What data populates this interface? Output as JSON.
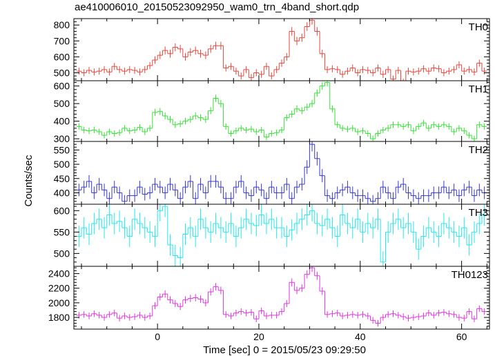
{
  "chart_data": [
    {
      "type": "line",
      "title": "ae410006010_20150523092950_wam0_trn_4band_short.qdp",
      "panel_label": "TH0",
      "color": "#e8443a",
      "ylim": [
        450,
        840
      ],
      "yticks": [
        500,
        600,
        700,
        800
      ],
      "x": [
        -15.5,
        -14.5,
        -13.5,
        -12.5,
        -11.5,
        -10.5,
        -9.5,
        -8.5,
        -7.5,
        -6.5,
        -5.5,
        -4.5,
        -3.5,
        -2.5,
        -1.5,
        -0.5,
        0.5,
        1.5,
        2.5,
        3.5,
        4.5,
        5.5,
        6.5,
        7.5,
        8.5,
        9.5,
        10.5,
        11.5,
        12.5,
        13.5,
        14.5,
        15.5,
        16.5,
        17.5,
        18.5,
        19.5,
        20.5,
        21.5,
        22.5,
        23.5,
        24.5,
        25.5,
        26.5,
        27.5,
        28.5,
        29.5,
        30.5,
        31.5,
        32.5,
        33.5,
        34.5,
        35.5,
        36.5,
        37.5,
        38.5,
        39.5,
        40.5,
        41.5,
        42.5,
        43.5,
        44.5,
        45.5,
        46.5,
        47.5,
        48.5,
        49.5,
        50.5,
        51.5,
        52.5,
        53.5,
        54.5,
        55.5,
        56.5,
        57.5,
        58.5,
        59.5,
        60.5,
        61.5,
        62.5,
        63.5,
        64.5
      ],
      "values": [
        510,
        500,
        515,
        505,
        510,
        520,
        505,
        540,
        520,
        510,
        520,
        515,
        505,
        520,
        545,
        580,
        610,
        640,
        620,
        660,
        650,
        600,
        630,
        640,
        620,
        610,
        650,
        670,
        670,
        530,
        540,
        510,
        480,
        520,
        470,
        500,
        490,
        540,
        480,
        520,
        560,
        600,
        760,
        700,
        720,
        790,
        830,
        760,
        620,
        520,
        525,
        520,
        490,
        510,
        530,
        500,
        520,
        515,
        500,
        530,
        490,
        520,
        460,
        515,
        440,
        510,
        505,
        510,
        525,
        510,
        530,
        525,
        500,
        510,
        520,
        550,
        510,
        520,
        505,
        560,
        510
      ],
      "errors": [
        22,
        22,
        22,
        22,
        22,
        22,
        22,
        22,
        22,
        22,
        22,
        22,
        22,
        22,
        22,
        24,
        24,
        25,
        25,
        25,
        25,
        24,
        25,
        25,
        25,
        24,
        25,
        25,
        25,
        22,
        22,
        22,
        22,
        22,
        22,
        22,
        22,
        22,
        22,
        22,
        23,
        24,
        27,
        26,
        26,
        27,
        28,
        27,
        25,
        22,
        22,
        22,
        22,
        22,
        22,
        22,
        22,
        22,
        22,
        22,
        22,
        22,
        22,
        22,
        22,
        22,
        22,
        22,
        22,
        22,
        22,
        22,
        22,
        22,
        22,
        22,
        22,
        22,
        22,
        22,
        22
      ]
    },
    {
      "type": "line",
      "panel_label": "TH1",
      "color": "#33e133",
      "ylim": [
        285,
        630
      ],
      "yticks": [
        300,
        400,
        500,
        600
      ],
      "x": [
        -15.5,
        -14.5,
        -13.5,
        -12.5,
        -11.5,
        -10.5,
        -9.5,
        -8.5,
        -7.5,
        -6.5,
        -5.5,
        -4.5,
        -3.5,
        -2.5,
        -1.5,
        -0.5,
        0.5,
        1.5,
        2.5,
        3.5,
        4.5,
        5.5,
        6.5,
        7.5,
        8.5,
        9.5,
        10.5,
        11.5,
        12.5,
        13.5,
        14.5,
        15.5,
        16.5,
        17.5,
        18.5,
        19.5,
        20.5,
        21.5,
        22.5,
        23.5,
        24.5,
        25.5,
        26.5,
        27.5,
        28.5,
        29.5,
        30.5,
        31.5,
        32.5,
        33.5,
        34.5,
        35.5,
        36.5,
        37.5,
        38.5,
        39.5,
        40.5,
        41.5,
        42.5,
        43.5,
        44.5,
        45.5,
        46.5,
        47.5,
        48.5,
        49.5,
        50.5,
        51.5,
        52.5,
        53.5,
        54.5,
        55.5,
        56.5,
        57.5,
        58.5,
        59.5,
        60.5,
        61.5,
        62.5,
        63.5,
        64.5
      ],
      "values": [
        370,
        350,
        345,
        350,
        340,
        320,
        340,
        330,
        335,
        360,
        345,
        350,
        365,
        340,
        360,
        450,
        455,
        430,
        410,
        380,
        385,
        400,
        410,
        430,
        420,
        410,
        460,
        530,
        500,
        370,
        330,
        345,
        360,
        350,
        355,
        340,
        350,
        310,
        330,
        335,
        350,
        420,
        440,
        470,
        460,
        480,
        500,
        560,
        600,
        620,
        470,
        380,
        360,
        355,
        360,
        340,
        345,
        330,
        300,
        330,
        350,
        360,
        380,
        380,
        370,
        380,
        345,
        370,
        390,
        360,
        380,
        370,
        380,
        370,
        340,
        360,
        345,
        320,
        300,
        380,
        370
      ],
      "errors": [
        18,
        18,
        18,
        18,
        18,
        18,
        18,
        18,
        18,
        18,
        18,
        18,
        18,
        18,
        18,
        20,
        20,
        20,
        20,
        19,
        19,
        19,
        19,
        20,
        20,
        20,
        20,
        21,
        21,
        18,
        18,
        18,
        18,
        18,
        18,
        18,
        18,
        18,
        18,
        18,
        18,
        19,
        20,
        20,
        20,
        20,
        21,
        21,
        22,
        22,
        20,
        18,
        18,
        18,
        18,
        18,
        18,
        18,
        18,
        18,
        18,
        18,
        18,
        18,
        18,
        18,
        18,
        18,
        18,
        18,
        18,
        18,
        18,
        18,
        18,
        18,
        18,
        18,
        18,
        18,
        18
      ]
    },
    {
      "type": "line",
      "panel_label": "TH2",
      "color": "#3535d0",
      "ylim": [
        360,
        580
      ],
      "yticks": [
        400,
        450,
        500,
        550
      ],
      "x": [
        -15.5,
        -14.5,
        -13.5,
        -12.5,
        -11.5,
        -10.5,
        -9.5,
        -8.5,
        -7.5,
        -6.5,
        -5.5,
        -4.5,
        -3.5,
        -2.5,
        -1.5,
        -0.5,
        0.5,
        1.5,
        2.5,
        3.5,
        4.5,
        5.5,
        6.5,
        7.5,
        8.5,
        9.5,
        10.5,
        11.5,
        12.5,
        13.5,
        14.5,
        15.5,
        16.5,
        17.5,
        18.5,
        19.5,
        20.5,
        21.5,
        22.5,
        23.5,
        24.5,
        25.5,
        26.5,
        27.5,
        28.5,
        29.5,
        30.5,
        31.5,
        32.5,
        33.5,
        34.5,
        35.5,
        36.5,
        37.5,
        38.5,
        39.5,
        40.5,
        41.5,
        42.5,
        43.5,
        44.5,
        45.5,
        46.5,
        47.5,
        48.5,
        49.5,
        50.5,
        51.5,
        52.5,
        53.5,
        54.5,
        55.5,
        56.5,
        57.5,
        58.5,
        59.5,
        60.5,
        61.5,
        62.5,
        63.5,
        64.5
      ],
      "values": [
        410,
        420,
        440,
        400,
        430,
        410,
        380,
        420,
        400,
        370,
        390,
        390,
        420,
        395,
        400,
        430,
        420,
        400,
        430,
        410,
        380,
        420,
        440,
        380,
        430,
        400,
        440,
        440,
        420,
        380,
        380,
        420,
        440,
        400,
        390,
        420,
        410,
        380,
        420,
        400,
        400,
        430,
        380,
        420,
        430,
        490,
        570,
        520,
        460,
        390,
        380,
        400,
        410,
        420,
        400,
        390,
        390,
        380,
        370,
        380,
        420,
        400,
        380,
        420,
        430,
        400,
        390,
        380,
        390,
        390,
        400,
        400,
        420,
        400,
        410,
        390,
        410,
        420,
        390,
        410,
        400
      ],
      "errors": [
        22,
        22,
        22,
        22,
        22,
        22,
        22,
        22,
        22,
        22,
        22,
        22,
        22,
        22,
        22,
        22,
        22,
        22,
        22,
        22,
        22,
        22,
        22,
        22,
        22,
        22,
        22,
        22,
        22,
        22,
        22,
        22,
        22,
        22,
        22,
        22,
        22,
        22,
        22,
        22,
        22,
        22,
        22,
        22,
        22,
        24,
        25,
        24,
        23,
        22,
        22,
        22,
        22,
        22,
        22,
        22,
        22,
        22,
        22,
        22,
        22,
        22,
        22,
        22,
        22,
        22,
        22,
        22,
        22,
        22,
        22,
        22,
        22,
        22,
        22,
        22,
        22,
        22,
        22,
        22,
        22
      ]
    },
    {
      "type": "line",
      "panel_label": "TH3",
      "color": "#22e8e8",
      "ylim": [
        470,
        615
      ],
      "yticks": [
        500,
        550,
        600
      ],
      "x": [
        -15.5,
        -14.5,
        -13.5,
        -12.5,
        -11.5,
        -10.5,
        -9.5,
        -8.5,
        -7.5,
        -6.5,
        -5.5,
        -4.5,
        -3.5,
        -2.5,
        -1.5,
        -0.5,
        0.5,
        1.5,
        2.5,
        3.5,
        4.5,
        5.5,
        6.5,
        7.5,
        8.5,
        9.5,
        10.5,
        11.5,
        12.5,
        13.5,
        14.5,
        15.5,
        16.5,
        17.5,
        18.5,
        19.5,
        20.5,
        21.5,
        22.5,
        23.5,
        24.5,
        25.5,
        26.5,
        27.5,
        28.5,
        29.5,
        30.5,
        31.5,
        32.5,
        33.5,
        34.5,
        35.5,
        36.5,
        37.5,
        38.5,
        39.5,
        40.5,
        41.5,
        42.5,
        43.5,
        44.5,
        45.5,
        46.5,
        47.5,
        48.5,
        49.5,
        50.5,
        51.5,
        52.5,
        53.5,
        54.5,
        55.5,
        56.5,
        57.5,
        58.5,
        59.5,
        60.5,
        61.5,
        62.5,
        63.5,
        64.5
      ],
      "values": [
        540,
        560,
        545,
        570,
        580,
        560,
        590,
        570,
        575,
        560,
        540,
        580,
        570,
        560,
        550,
        540,
        600,
        610,
        520,
        495,
        490,
        545,
        560,
        540,
        580,
        560,
        550,
        570,
        560,
        550,
        570,
        540,
        560,
        580,
        570,
        565,
        590,
        570,
        580,
        560,
        560,
        540,
        555,
        570,
        580,
        590,
        600,
        570,
        565,
        580,
        560,
        540,
        590,
        570,
        560,
        580,
        550,
        570,
        560,
        580,
        480,
        550,
        570,
        580,
        560,
        570,
        550,
        510,
        540,
        560,
        550,
        540,
        570,
        560,
        550,
        540,
        560,
        520,
        550,
        570,
        590
      ],
      "errors": [
        25,
        25,
        25,
        25,
        25,
        25,
        25,
        25,
        25,
        25,
        25,
        25,
        25,
        25,
        25,
        25,
        25,
        25,
        25,
        25,
        25,
        25,
        25,
        25,
        25,
        25,
        25,
        25,
        25,
        25,
        25,
        25,
        25,
        25,
        25,
        25,
        25,
        25,
        25,
        25,
        25,
        25,
        25,
        25,
        25,
        25,
        25,
        25,
        25,
        25,
        25,
        25,
        25,
        25,
        25,
        25,
        25,
        25,
        25,
        25,
        25,
        25,
        25,
        25,
        25,
        25,
        25,
        25,
        25,
        25,
        25,
        25,
        25,
        25,
        25,
        25,
        25,
        25,
        25,
        25,
        25
      ]
    },
    {
      "type": "line",
      "panel_label": "TH0123",
      "color": "#e033e0",
      "ylim": [
        1640,
        2500
      ],
      "yticks": [
        1800,
        2000,
        2200,
        2400
      ],
      "xlabel": "Time [sec] 0 = 2015/05/23 09:29:50",
      "xlim": [
        -16.5,
        65.5
      ],
      "xticks": [
        0,
        20,
        40,
        60
      ],
      "x": [
        -15.5,
        -14.5,
        -13.5,
        -12.5,
        -11.5,
        -10.5,
        -9.5,
        -8.5,
        -7.5,
        -6.5,
        -5.5,
        -4.5,
        -3.5,
        -2.5,
        -1.5,
        -0.5,
        0.5,
        1.5,
        2.5,
        3.5,
        4.5,
        5.5,
        6.5,
        7.5,
        8.5,
        9.5,
        10.5,
        11.5,
        12.5,
        13.5,
        14.5,
        15.5,
        16.5,
        17.5,
        18.5,
        19.5,
        20.5,
        21.5,
        22.5,
        23.5,
        24.5,
        25.5,
        26.5,
        27.5,
        28.5,
        29.5,
        30.5,
        31.5,
        32.5,
        33.5,
        34.5,
        35.5,
        36.5,
        37.5,
        38.5,
        39.5,
        40.5,
        41.5,
        42.5,
        43.5,
        44.5,
        45.5,
        46.5,
        47.5,
        48.5,
        49.5,
        50.5,
        51.5,
        52.5,
        53.5,
        54.5,
        55.5,
        56.5,
        57.5,
        58.5,
        59.5,
        60.5,
        61.5,
        62.5,
        63.5,
        64.5
      ],
      "values": [
        1830,
        1840,
        1820,
        1850,
        1830,
        1800,
        1840,
        1860,
        1790,
        1820,
        1800,
        1810,
        1830,
        1800,
        1820,
        1960,
        2080,
        2120,
        2040,
        1990,
        1950,
        2040,
        2060,
        2070,
        2050,
        2000,
        2150,
        2220,
        2170,
        1840,
        1820,
        1860,
        1880,
        1860,
        1870,
        1780,
        1890,
        1820,
        1830,
        1830,
        1880,
        1990,
        2280,
        2170,
        2200,
        2390,
        2480,
        2370,
        2160,
        1840,
        1850,
        1860,
        1820,
        1830,
        1840,
        1830,
        1840,
        1820,
        1760,
        1720,
        1800,
        1840,
        1850,
        1830,
        1810,
        1790,
        1800,
        1810,
        1820,
        1860,
        1830,
        1860,
        1870,
        1850,
        1840,
        1800,
        1790,
        1880,
        1780,
        1920,
        1880
      ],
      "errors": [
        45,
        45,
        45,
        45,
        45,
        45,
        45,
        45,
        45,
        45,
        45,
        45,
        45,
        45,
        45,
        48,
        48,
        50,
        50,
        48,
        48,
        50,
        50,
        50,
        50,
        50,
        50,
        52,
        52,
        45,
        45,
        45,
        45,
        45,
        45,
        45,
        45,
        45,
        45,
        45,
        46,
        48,
        55,
        52,
        52,
        56,
        58,
        56,
        52,
        45,
        45,
        45,
        45,
        45,
        45,
        45,
        45,
        45,
        45,
        45,
        45,
        45,
        45,
        45,
        45,
        45,
        45,
        45,
        45,
        45,
        45,
        45,
        45,
        45,
        45,
        45,
        45,
        45,
        45,
        45,
        45
      ]
    }
  ],
  "ylabel": "Counts/sec"
}
